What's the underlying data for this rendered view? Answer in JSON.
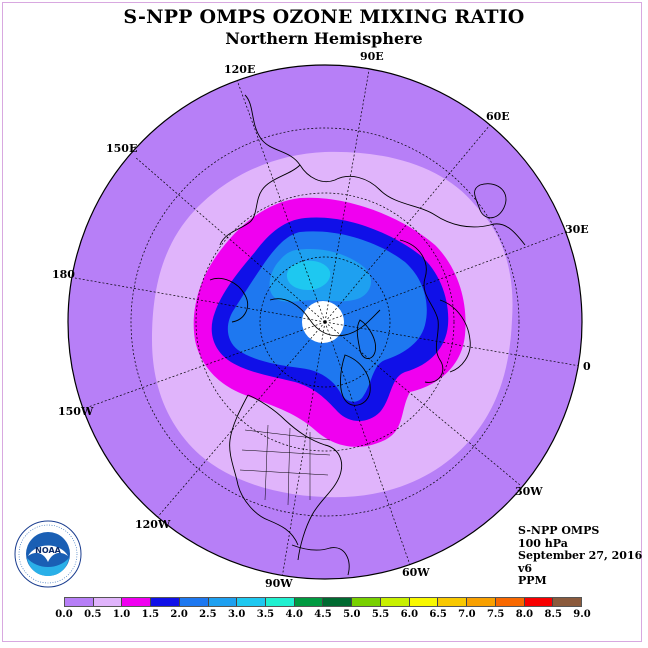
{
  "header": {
    "title": "S-NPP OMPS OZONE MIXING RATIO",
    "subtitle": "Northern Hemisphere"
  },
  "map": {
    "projection": "north-polar-stereographic",
    "longitude_labels": [
      "120E",
      "90E",
      "60E",
      "150E",
      "30E",
      "180",
      "0",
      "150W",
      "30W",
      "120W",
      "60W",
      "90W"
    ],
    "colors": {
      "outer": "#b77ff7",
      "light": "#e0b4fb",
      "magenta": "#f000f0",
      "navy": "#1010e8",
      "blue": "#1e78f0",
      "cyan_blue": "#1ea0f0",
      "sky": "#1ec8f0",
      "no_data": "#ffffff"
    }
  },
  "info": {
    "instrument": "S-NPP OMPS",
    "level": "100 hPa",
    "date": "September 27, 2016",
    "version": "v6",
    "units": "PPM"
  },
  "colorbar": {
    "colors": [
      "#b77ff7",
      "#e0b4fb",
      "#f000f0",
      "#1010e8",
      "#1e78f0",
      "#1ea0f0",
      "#1ec8f0",
      "#20f0d0",
      "#009a40",
      "#006a30",
      "#78d000",
      "#c8f000",
      "#f8f800",
      "#f8c800",
      "#f8a000",
      "#f86800",
      "#f80000",
      "#8b5a3c"
    ],
    "labels": [
      "0.0",
      "0.5",
      "1.0",
      "1.5",
      "2.0",
      "2.5",
      "3.0",
      "3.5",
      "4.0",
      "4.5",
      "5.0",
      "5.5",
      "6.0",
      "6.5",
      "7.0",
      "7.5",
      "8.0",
      "8.5",
      "9.0"
    ]
  },
  "logo": {
    "text": "NOAA"
  }
}
